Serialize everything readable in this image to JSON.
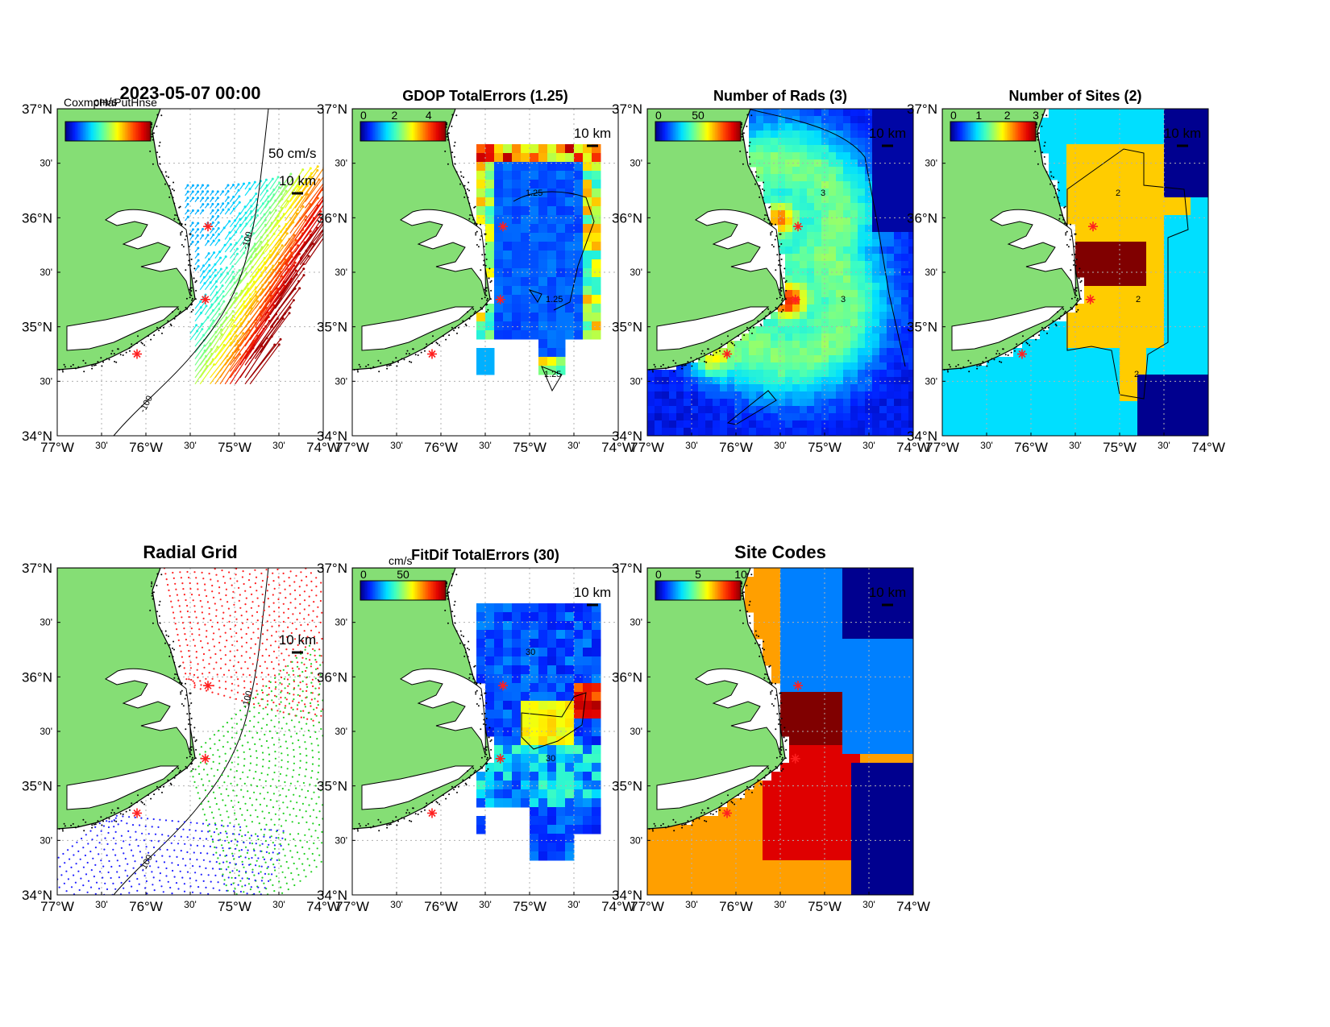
{
  "figure": {
    "timestamp": "2023-05-07 00:00",
    "overlapping_legend_text": "CoxmpHaPutHnse",
    "scale_bar_label": "10 km",
    "vector_scale_label": "50 cm/s",
    "axes": {
      "lat_labels": [
        "37°N",
        "30'",
        "36°N",
        "30'",
        "35°N",
        "30'",
        "34°N"
      ],
      "lon_labels": [
        "77°W",
        "30'",
        "76°W",
        "30'",
        "75°W",
        "30'",
        "74°W"
      ],
      "lon_range": [
        -77,
        -74
      ],
      "lat_range": [
        34,
        37
      ]
    },
    "colormap": [
      "#00008f",
      "#0020ff",
      "#0080ff",
      "#00dfff",
      "#40ffbf",
      "#a0ff60",
      "#ffff00",
      "#ff9f00",
      "#ff4000",
      "#df0000",
      "#800000"
    ],
    "land_color": "#85de75",
    "site_color": "#ff2020",
    "sites": [
      {
        "lon": -75.3,
        "lat": 35.92
      },
      {
        "lon": -75.33,
        "lat": 35.25
      },
      {
        "lon": -76.1,
        "lat": 34.75
      }
    ]
  },
  "panels": [
    {
      "id": "total-vectors",
      "title": "2023-05-07 00:00",
      "colorbar": {
        "unit": "cm/s",
        "ticks": [],
        "range": [
          0,
          50
        ]
      },
      "contours": [
        {
          "label": "-100"
        },
        {
          "label": "-100"
        }
      ]
    },
    {
      "id": "gdop-total-errors",
      "title": "GDOP TotalErrors (1.25)",
      "colorbar": {
        "unit": "",
        "ticks": [
          "0",
          "2",
          "4"
        ],
        "range": [
          0,
          5
        ]
      },
      "contours": [
        {
          "label": "1.25"
        },
        {
          "label": "1.25"
        },
        {
          "label": "1.25"
        }
      ]
    },
    {
      "id": "number-of-rads",
      "title": "Number of Rads (3)",
      "colorbar": {
        "unit": "",
        "ticks": [
          "0",
          "50"
        ],
        "range": [
          0,
          100
        ]
      },
      "contours": [
        {
          "label": "3"
        },
        {
          "label": "3"
        }
      ]
    },
    {
      "id": "number-of-sites",
      "title": "Number of Sites (2)",
      "colorbar": {
        "unit": "",
        "ticks": [
          "0",
          "1",
          "2",
          "3"
        ],
        "range": [
          0,
          3
        ]
      },
      "contours": [
        {
          "label": "2"
        },
        {
          "label": "2"
        },
        {
          "label": "2"
        }
      ]
    },
    {
      "id": "radial-grid",
      "title": "Radial Grid",
      "colorbar": null,
      "contours": [
        {
          "label": "-100"
        },
        {
          "label": "-100"
        }
      ]
    },
    {
      "id": "fitdif-total-errors",
      "title": "FitDif TotalErrors (30)",
      "colorbar": {
        "unit": "cm/s",
        "ticks": [
          "0",
          "50"
        ],
        "range": [
          0,
          100
        ]
      },
      "contours": [
        {
          "label": "30"
        },
        {
          "label": "30"
        }
      ]
    },
    {
      "id": "site-codes",
      "title": "Site Codes",
      "colorbar": {
        "unit": "",
        "ticks": [
          "0",
          "5",
          "10"
        ],
        "range": [
          0,
          10
        ]
      },
      "contours": []
    }
  ]
}
